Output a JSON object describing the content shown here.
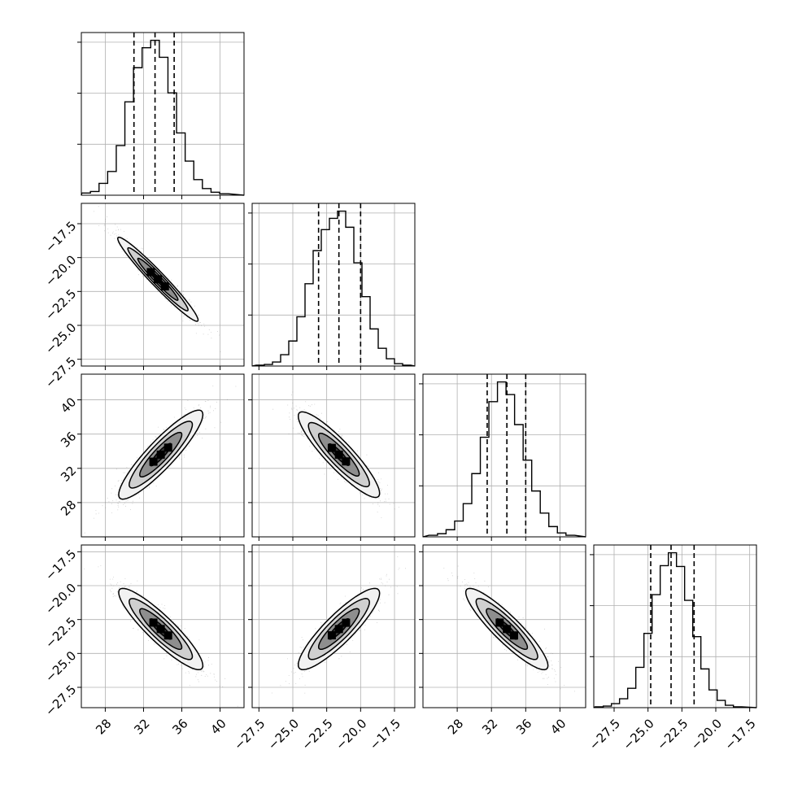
{
  "chart_data": {
    "type": "corner",
    "grid": true,
    "n_params": 4,
    "parameters": [
      {
        "range": [
          25.5,
          42.5
        ],
        "ticks": [
          28,
          32,
          36,
          40
        ],
        "tick_labels": [
          "28",
          "32",
          "36",
          "40"
        ],
        "quantiles": [
          31.0,
          33.2,
          35.2
        ],
        "hist_centers": [
          26.0,
          26.9,
          27.8,
          28.7,
          29.6,
          30.5,
          31.4,
          32.3,
          33.2,
          34.1,
          35.0,
          35.9,
          36.8,
          37.7,
          38.6,
          39.5,
          40.4
        ],
        "hist_counts": [
          3,
          5,
          16,
          32,
          67,
          126,
          172,
          199,
          209,
          186,
          138,
          84,
          46,
          21,
          9,
          4,
          2
        ]
      },
      {
        "range": [
          -28.0,
          -16.0
        ],
        "ticks": [
          -27.5,
          -25.0,
          -22.5,
          -20.0,
          -17.5
        ],
        "tick_labels": [
          "−27.5",
          "−25.0",
          "−22.5",
          "−20.0",
          "−17.5"
        ],
        "quantiles": [
          -23.1,
          -21.6,
          -20.0
        ],
        "hist_centers": [
          -27.4,
          -26.8,
          -26.2,
          -25.6,
          -25.0,
          -24.4,
          -23.8,
          -23.2,
          -22.6,
          -22.0,
          -21.4,
          -20.8,
          -20.2,
          -19.6,
          -19.0,
          -18.4,
          -17.8,
          -17.2,
          -16.6
        ],
        "hist_counts": [
          1,
          2,
          5,
          14,
          31,
          61,
          102,
          143,
          169,
          183,
          192,
          172,
          128,
          86,
          46,
          22,
          9,
          3,
          1
        ]
      },
      {
        "range": [
          24.0,
          43.0
        ],
        "ticks": [
          28,
          32,
          36,
          40
        ],
        "tick_labels": [
          "28",
          "32",
          "36",
          "40"
        ],
        "quantiles": [
          31.5,
          33.8,
          36.0
        ],
        "hist_centers": [
          25.2,
          26.2,
          27.2,
          28.2,
          29.2,
          30.2,
          31.2,
          32.2,
          33.2,
          34.2,
          35.2,
          36.2,
          37.2,
          38.2,
          39.2,
          40.2,
          41.2
        ],
        "hist_counts": [
          2,
          4,
          9,
          20,
          42,
          80,
          126,
          171,
          196,
          180,
          142,
          97,
          58,
          30,
          13,
          5,
          2
        ]
      },
      {
        "range": [
          -29.0,
          -17.0
        ],
        "ticks": [
          -27.5,
          -25.0,
          -22.5,
          -20.0,
          -17.5
        ],
        "tick_labels": [
          "−27.5",
          "−25.0",
          "−22.5",
          "−20.0",
          "−17.5"
        ],
        "quantiles": [
          -24.8,
          -23.3,
          -21.6
        ],
        "hist_centers": [
          -28.6,
          -28.0,
          -27.4,
          -26.8,
          -26.2,
          -25.6,
          -25.0,
          -24.4,
          -23.8,
          -23.2,
          -22.6,
          -22.0,
          -21.4,
          -20.8,
          -20.2,
          -19.6,
          -19.0,
          -18.4
        ],
        "hist_counts": [
          1,
          2,
          5,
          11,
          24,
          50,
          92,
          140,
          176,
          192,
          175,
          133,
          88,
          48,
          22,
          9,
          3,
          1
        ]
      }
    ],
    "pairs": [
      {
        "row": 1,
        "col": 0,
        "center": [
          33.5,
          -21.6
        ],
        "spread": [
          2.1,
          1.55
        ],
        "rho": -0.97
      },
      {
        "row": 2,
        "col": 0,
        "center": [
          33.8,
          33.6
        ],
        "spread": [
          2.2,
          2.6
        ],
        "rho": 0.9
      },
      {
        "row": 2,
        "col": 1,
        "center": [
          -21.6,
          33.6
        ],
        "spread": [
          1.5,
          2.5
        ],
        "rho": -0.9
      },
      {
        "row": 3,
        "col": 0,
        "center": [
          33.8,
          -23.2
        ],
        "spread": [
          2.2,
          1.5
        ],
        "rho": -0.9
      },
      {
        "row": 3,
        "col": 1,
        "center": [
          -21.6,
          -23.2
        ],
        "spread": [
          1.5,
          1.5
        ],
        "rho": 0.88
      },
      {
        "row": 3,
        "col": 2,
        "center": [
          33.8,
          -23.2
        ],
        "spread": [
          2.4,
          1.5
        ],
        "rho": -0.9
      }
    ]
  }
}
